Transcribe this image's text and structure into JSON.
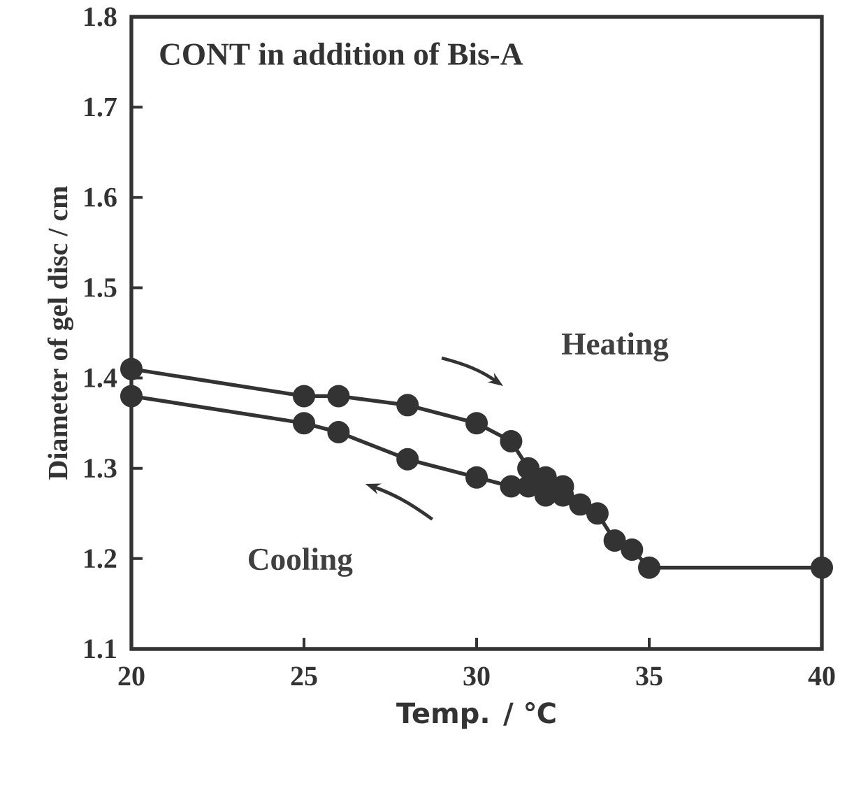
{
  "chart_data": {
    "type": "line",
    "title": "CONT in addition of Bis-A",
    "xlabel": "Temp. / ℃",
    "ylabel": "Diameter of gel disc / cm",
    "xlim": [
      20,
      40
    ],
    "xticks": [
      20,
      25,
      30,
      35,
      40
    ],
    "ylim": [
      1.1,
      1.8
    ],
    "yticks": [
      1.1,
      1.2,
      1.3,
      1.4,
      1.5,
      1.6,
      1.7,
      1.8
    ],
    "marker": "circle",
    "grid": false,
    "series": [
      {
        "color": "#333333",
        "x": [
          20,
          25,
          26,
          28,
          30,
          31,
          31.5,
          32,
          32.5,
          33,
          33.5,
          34,
          34.5,
          35,
          40
        ],
        "values": [
          1.41,
          1.38,
          1.38,
          1.37,
          1.35,
          1.33,
          1.3,
          1.29,
          1.28,
          1.26,
          1.25,
          1.22,
          1.21,
          1.19,
          1.19
        ]
      },
      {
        "color": "#333333",
        "x": [
          20,
          25,
          26,
          28,
          30,
          31,
          31.5,
          32,
          32.5
        ],
        "values": [
          1.38,
          1.35,
          1.34,
          1.31,
          1.29,
          1.28,
          1.28,
          1.27,
          1.27
        ]
      }
    ],
    "annotations": [
      "Heating",
      "Cooling"
    ]
  }
}
